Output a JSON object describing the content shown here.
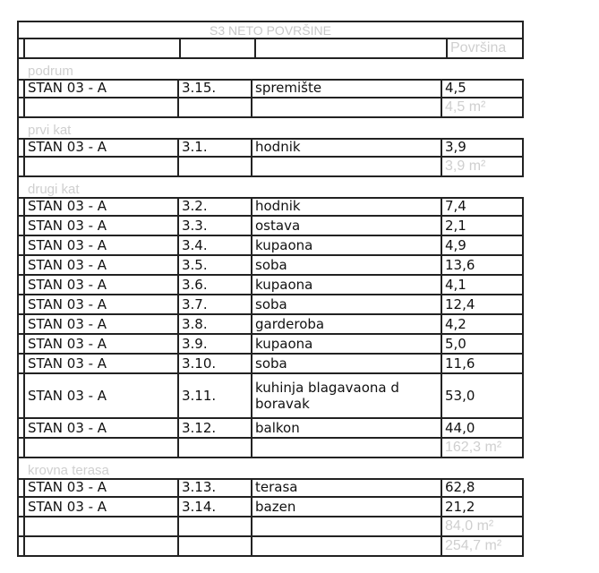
{
  "title": "S3 NETO POVRŠINE",
  "header": {
    "area_label": "Površina"
  },
  "sections": [
    {
      "label": "podrum",
      "rows": [
        [
          "STAN 03 - A",
          "3.15.",
          "spremište",
          "4,5"
        ]
      ],
      "subtotal": "4,5 m²"
    },
    {
      "label": "prvi  kat",
      "rows": [
        [
          "STAN 03 - A",
          "3.1.",
          "hodnik",
          "3,9"
        ]
      ],
      "subtotal": "3,9 m²"
    },
    {
      "label": "drugi kat",
      "rows": [
        [
          "STAN 03 - A",
          "3.2.",
          "hodnik",
          "7,4"
        ],
        [
          "STAN 03 - A",
          "3.3.",
          "ostava",
          "2,1"
        ],
        [
          "STAN 03 - A",
          "3.4.",
          "kupaona",
          "4,9"
        ],
        [
          "STAN 03 - A",
          "3.5.",
          "soba",
          "13,6"
        ],
        [
          "STAN 03 - A",
          "3.6.",
          "kupaona",
          "4,1"
        ],
        [
          "STAN 03 - A",
          "3.7.",
          "soba",
          "12,4"
        ],
        [
          "STAN 03 - A",
          "3.8.",
          "garderoba",
          "4,2"
        ],
        [
          "STAN 03 - A",
          "3.9.",
          "kupaona",
          "5,0"
        ],
        [
          "STAN 03 - A",
          "3.10.",
          "soba",
          "11,6"
        ],
        [
          "STAN 03 - A",
          "3.11.",
          "kuhinja blagavaona d boravak",
          "53,0"
        ],
        [
          "STAN 03 - A",
          "3.12.",
          "balkon",
          "44,0"
        ]
      ],
      "subtotal": "162,3 m²"
    },
    {
      "label": "krovna terasa",
      "rows": [
        [
          "STAN 03 - A",
          "3.13.",
          "terasa",
          "62,8"
        ],
        [
          "STAN 03 - A",
          "3.14.",
          "bazen",
          "21,2"
        ]
      ],
      "subtotal": "84,0 m²"
    }
  ],
  "total": "254,7 m²"
}
